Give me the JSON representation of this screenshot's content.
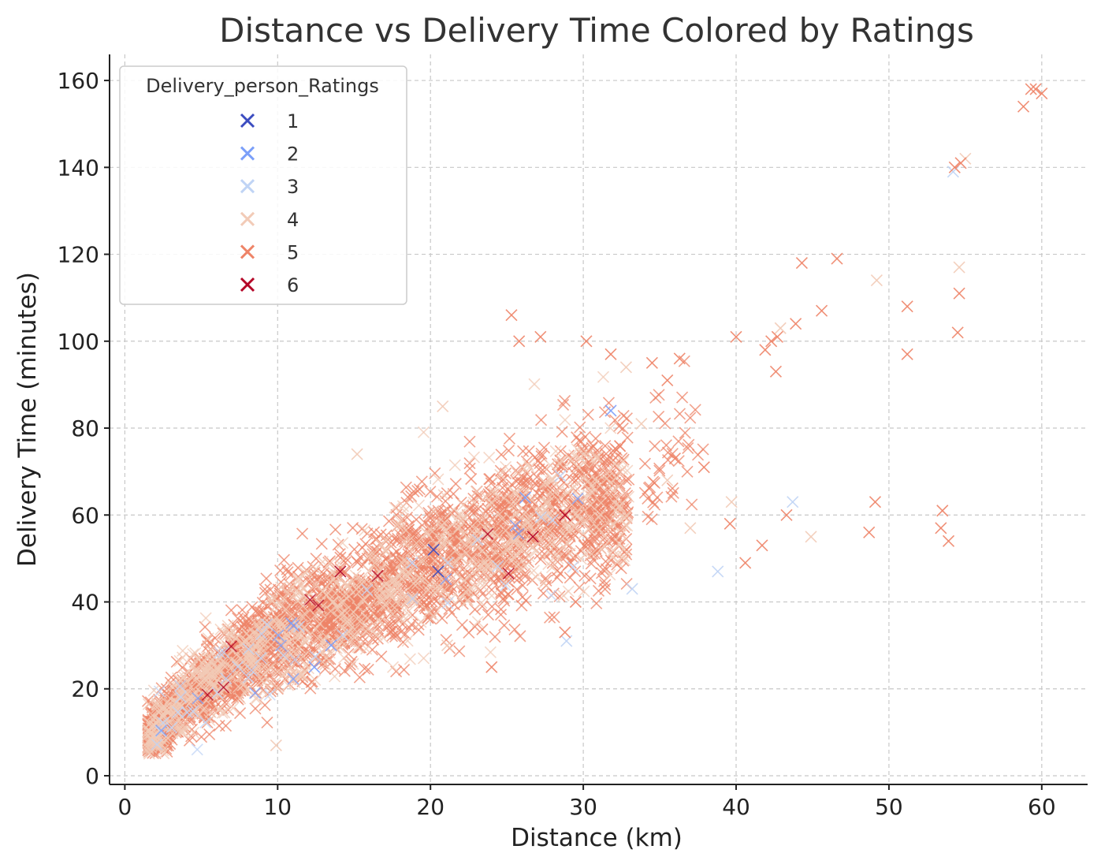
{
  "chart_data": {
    "type": "scatter",
    "title": "Distance vs Delivery Time Colored by Ratings",
    "xlabel": "Distance (km)",
    "ylabel": "Delivery Time (minutes)",
    "xlim": [
      -1,
      63
    ],
    "ylim": [
      -2,
      166
    ],
    "xticks": [
      "0",
      "10",
      "20",
      "30",
      "40",
      "50",
      "60"
    ],
    "yticks": [
      "0",
      "20",
      "40",
      "60",
      "80",
      "100",
      "120",
      "140",
      "160"
    ],
    "grid": true,
    "marker": "x",
    "legend": {
      "title": "Delivery_person_Ratings",
      "position": "upper-left",
      "entries": [
        {
          "label": "1",
          "color": "#3b4cc0"
        },
        {
          "label": "2",
          "color": "#7b9ff9"
        },
        {
          "label": "3",
          "color": "#c0d4f5"
        },
        {
          "label": "4",
          "color": "#f2cbb7"
        },
        {
          "label": "5",
          "color": "#ee8468"
        },
        {
          "label": "6",
          "color": "#b40426"
        }
      ]
    },
    "series": [
      {
        "name": "1",
        "color": "#3b4cc0",
        "points": [
          [
            20.5,
            47
          ],
          [
            20.2,
            52
          ]
        ]
      },
      {
        "name": "2",
        "color": "#7b9ff9",
        "points": [
          [
            31.8,
            84
          ],
          [
            26.2,
            64
          ],
          [
            13.5,
            30
          ],
          [
            12.4,
            25
          ]
        ]
      },
      {
        "name": "3",
        "color": "#c0d4f5",
        "points": [
          [
            28.9,
            31
          ],
          [
            33.2,
            43
          ],
          [
            43.7,
            63
          ],
          [
            54.2,
            139
          ],
          [
            28.5,
            69
          ],
          [
            18.8,
            49
          ],
          [
            38.8,
            47
          ]
        ]
      },
      {
        "name": "4",
        "color": "#f2cbb7",
        "points": [
          [
            15.2,
            74
          ],
          [
            20.8,
            85
          ],
          [
            49.2,
            114
          ],
          [
            54.6,
            117
          ],
          [
            55.0,
            142
          ],
          [
            42.9,
            103
          ],
          [
            39.7,
            63
          ],
          [
            9.9,
            7
          ],
          [
            33.8,
            81
          ],
          [
            32.8,
            94
          ],
          [
            44.9,
            55
          ],
          [
            35.5,
            68
          ],
          [
            37.0,
            57
          ],
          [
            21.1,
            30
          ]
        ]
      },
      {
        "name": "5",
        "color": "#ee8468",
        "points": [
          [
            58.8,
            154
          ],
          [
            59.6,
            158
          ],
          [
            60.0,
            157
          ],
          [
            59.3,
            158
          ],
          [
            54.7,
            141
          ],
          [
            54.3,
            140
          ],
          [
            46.6,
            119
          ],
          [
            44.3,
            118
          ],
          [
            45.6,
            107
          ],
          [
            51.2,
            108
          ],
          [
            51.2,
            97
          ],
          [
            54.6,
            111
          ],
          [
            54.5,
            102
          ],
          [
            42.3,
            100
          ],
          [
            42.6,
            93
          ],
          [
            43.9,
            104
          ],
          [
            40.0,
            101
          ],
          [
            41.9,
            98
          ],
          [
            42.7,
            101
          ],
          [
            25.3,
            106
          ],
          [
            25.8,
            100
          ],
          [
            27.2,
            101
          ],
          [
            30.2,
            100
          ],
          [
            31.8,
            97
          ],
          [
            49.1,
            63
          ],
          [
            48.7,
            56
          ],
          [
            53.5,
            61
          ],
          [
            53.9,
            54
          ],
          [
            53.4,
            57
          ],
          [
            40.6,
            49
          ],
          [
            41.7,
            53
          ],
          [
            43.3,
            60
          ],
          [
            39.6,
            58
          ],
          [
            37.9,
            71
          ],
          [
            36.0,
            73
          ],
          [
            34.5,
            95
          ],
          [
            35.5,
            91
          ],
          [
            36.3,
            96
          ],
          [
            28.8,
            33
          ],
          [
            29.5,
            40
          ],
          [
            24.0,
            25
          ]
        ]
      },
      {
        "name": "6",
        "color": "#b40426",
        "points": [
          [
            14.1,
            47
          ],
          [
            28.8,
            60
          ],
          [
            26.7,
            55
          ]
        ]
      }
    ],
    "clusters": [
      {
        "series": "5",
        "n": 2600,
        "x_range": [
          1.5,
          33
        ],
        "y_center_at_x": [
          [
            1.5,
            9
          ],
          [
            5,
            20
          ],
          [
            10,
            32
          ],
          [
            15,
            40
          ],
          [
            20,
            50
          ],
          [
            25,
            55
          ],
          [
            30,
            62
          ],
          [
            33,
            63
          ]
        ],
        "spread": [
          [
            1.5,
            6
          ],
          [
            10,
            12
          ],
          [
            20,
            16
          ],
          [
            33,
            18
          ]
        ]
      },
      {
        "series": "4",
        "n": 900,
        "x_range": [
          1.5,
          33
        ],
        "y_center_at_x": [
          [
            1.5,
            9
          ],
          [
            5,
            20
          ],
          [
            10,
            32
          ],
          [
            15,
            40
          ],
          [
            20,
            50
          ],
          [
            25,
            55
          ],
          [
            30,
            62
          ],
          [
            33,
            63
          ]
        ],
        "spread": [
          [
            1.5,
            6
          ],
          [
            10,
            12
          ],
          [
            20,
            16
          ],
          [
            33,
            18
          ]
        ]
      },
      {
        "series": "5",
        "n": 40,
        "x_range": [
          34,
          38
        ],
        "y_center_at_x": [
          [
            34,
            65
          ],
          [
            38,
            80
          ]
        ],
        "spread": [
          [
            34,
            16
          ],
          [
            38,
            16
          ]
        ]
      },
      {
        "series": "3",
        "n": 40,
        "x_range": [
          2,
          30
        ],
        "y_center_at_x": [
          [
            2,
            12
          ],
          [
            15,
            40
          ],
          [
            30,
            60
          ]
        ],
        "spread": [
          [
            2,
            8
          ],
          [
            30,
            14
          ]
        ]
      },
      {
        "series": "2",
        "n": 12,
        "x_range": [
          2,
          30
        ],
        "y_center_at_x": [
          [
            2,
            12
          ],
          [
            15,
            40
          ],
          [
            30,
            60
          ]
        ],
        "spread": [
          [
            2,
            8
          ],
          [
            30,
            14
          ]
        ]
      },
      {
        "series": "6",
        "n": 8,
        "x_range": [
          3,
          30
        ],
        "y_center_at_x": [
          [
            3,
            14
          ],
          [
            15,
            40
          ],
          [
            30,
            60
          ]
        ],
        "spread": [
          [
            3,
            8
          ],
          [
            30,
            14
          ]
        ]
      }
    ]
  }
}
